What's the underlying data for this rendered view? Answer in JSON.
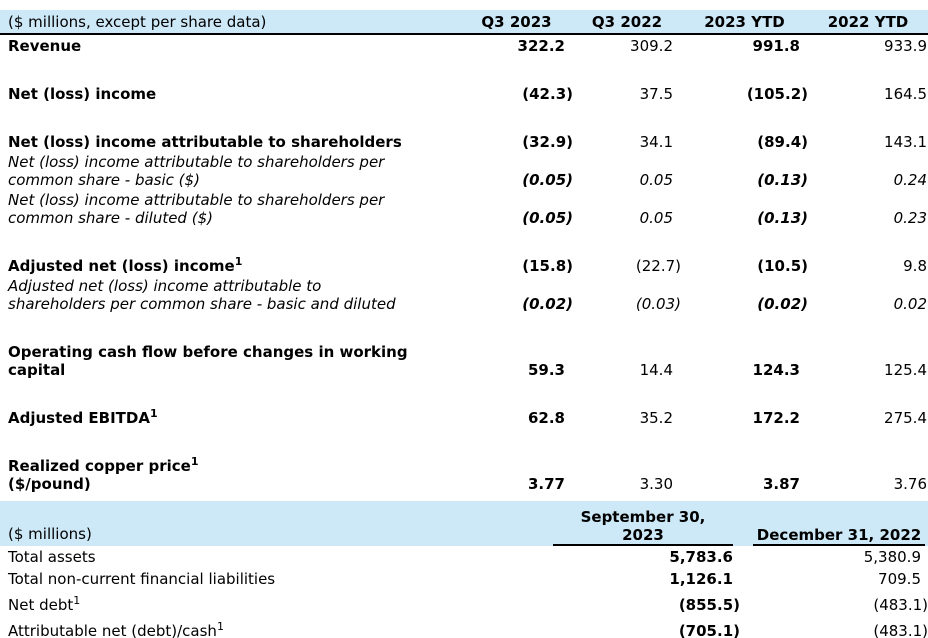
{
  "colors": {
    "header_band_bg": "#cde8f7",
    "rule": "#000000",
    "text": "#000000"
  },
  "table1": {
    "header": {
      "label": "($ millions, except per share data)",
      "columns": [
        "Q3 2023",
        "Q3 2022",
        "2023 YTD",
        "2022 YTD"
      ]
    },
    "rows": [
      {
        "label": "Revenue",
        "kind": "primary",
        "gap_before": false,
        "values": [
          "322.2",
          "309.2",
          "991.8",
          "933.9"
        ]
      },
      {
        "label": "Net (loss) income",
        "kind": "primary",
        "gap_before": true,
        "values": [
          "(42.3)",
          "37.5",
          "(105.2)",
          "164.5"
        ]
      },
      {
        "label": "Net (loss) income attributable to shareholders",
        "kind": "primary",
        "gap_before": true,
        "values": [
          "(32.9)",
          "34.1",
          "(89.4)",
          "143.1"
        ]
      },
      {
        "label": "Net (loss) income attributable to shareholders per\ncommon share - basic ($)",
        "kind": "pershare",
        "gap_before": false,
        "values": [
          "(0.05)",
          "0.05",
          "(0.13)",
          "0.24"
        ]
      },
      {
        "label": "Net (loss) income attributable to shareholders per\ncommon share - diluted ($)",
        "kind": "pershare",
        "gap_before": false,
        "values": [
          "(0.05)",
          "0.05",
          "(0.13)",
          "0.23"
        ]
      },
      {
        "label": "Adjusted net (loss) income¹",
        "kind": "primary",
        "gap_before": true,
        "values": [
          "(15.8)",
          "(22.7)",
          "(10.5)",
          "9.8"
        ]
      },
      {
        "label": "Adjusted net (loss) income attributable to\nshareholders per common share - basic and diluted",
        "kind": "pershare",
        "gap_before": false,
        "values": [
          "(0.02)",
          "(0.03)",
          "(0.02)",
          "0.02"
        ]
      },
      {
        "label": "Operating cash flow before changes in working\ncapital",
        "kind": "primary",
        "gap_before": true,
        "values": [
          "59.3",
          "14.4",
          "124.3",
          "125.4"
        ]
      },
      {
        "label": "Adjusted EBITDA¹",
        "kind": "primary",
        "gap_before": true,
        "values": [
          "62.8",
          "35.2",
          "172.2",
          "275.4"
        ]
      },
      {
        "label": "Realized copper price¹\n($/pound)",
        "kind": "primary",
        "gap_before": true,
        "values": [
          "3.77",
          "3.30",
          "3.87",
          "3.76"
        ]
      }
    ]
  },
  "table2": {
    "header": {
      "label": "($ millions)",
      "columns": [
        "September 30,\n2023",
        "December 31, 2022"
      ]
    },
    "rows": [
      {
        "label": "Total assets",
        "gap_before": false,
        "values": [
          "5,783.6",
          "5,380.9"
        ]
      },
      {
        "label": "Total non-current financial liabilities",
        "gap_before": false,
        "values": [
          "1,126.1",
          "709.5"
        ]
      },
      {
        "label": "Net debt¹",
        "gap_before": true,
        "values": [
          "(855.5)",
          "(483.1)"
        ]
      },
      {
        "label": "Attributable net (debt)/cash¹",
        "gap_before": true,
        "values": [
          "(705.1)",
          "(483.1)"
        ]
      }
    ]
  },
  "footnote_marker": "1"
}
